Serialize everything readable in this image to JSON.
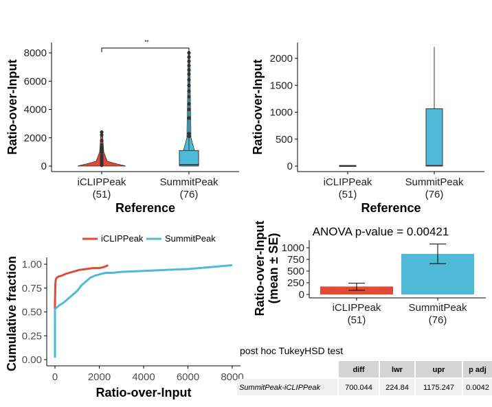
{
  "colors": {
    "iclip": "#E24A33",
    "summit": "#4EBAD7"
  },
  "chart_data": [
    {
      "type": "violin",
      "panel": "top-left",
      "categories": [
        "iCLIPPeak\n(51)",
        "SummitPeak\n(76)"
      ],
      "category_names": [
        "iCLIPPeak",
        "SummitPeak"
      ],
      "category_counts": [
        "(51)",
        "(76)"
      ],
      "xlabel": "Reference",
      "ylabel": "Ratio-over-Input",
      "ylim": [
        0,
        8500
      ],
      "yticks": [
        0,
        2000,
        4000,
        6000,
        8000
      ],
      "significance_label": "**",
      "box": {
        "SummitPeak": {
          "q1": 80,
          "median": 100,
          "q3": 1100,
          "whisker_high": 8000
        }
      },
      "outliers": {
        "iCLIPPeak": [
          2400,
          2200,
          1800,
          1500,
          1300,
          1200,
          1100,
          1000,
          800,
          700,
          600,
          500,
          400,
          300,
          200,
          100,
          60
        ],
        "SummitPeak": [
          2100,
          2300,
          3400,
          4000,
          4400,
          4900,
          5300,
          5700,
          6100,
          6500,
          6800,
          7100,
          7400,
          7700,
          8000
        ]
      }
    },
    {
      "type": "box",
      "panel": "top-right",
      "categories": [
        "iCLIPPeak\n(51)",
        "SummitPeak\n(76)"
      ],
      "category_names": [
        "iCLIPPeak",
        "SummitPeak"
      ],
      "category_counts": [
        "(51)",
        "(76)"
      ],
      "xlabel": "Reference",
      "ylabel": "Ratio-over-Input",
      "ylim": [
        -50,
        2300
      ],
      "yticks": [
        0,
        500,
        1000,
        1500,
        2000
      ],
      "boxes": [
        {
          "name": "iCLIPPeak",
          "q1": 0,
          "median": 5,
          "q3": 12,
          "whisker_low": 0,
          "whisker_high": 12
        },
        {
          "name": "SummitPeak",
          "q1": 0,
          "median": 10,
          "q3": 1065,
          "whisker_low": 0,
          "whisker_high": 2210
        }
      ]
    },
    {
      "type": "line",
      "panel": "bottom-left",
      "xlabel": "Ratio-over-Input",
      "ylabel": "Cumulative fraction",
      "xlim": [
        -200,
        8000
      ],
      "ylim": [
        0,
        1.0
      ],
      "xticks": [
        0,
        2000,
        4000,
        6000,
        8000
      ],
      "yticks": [
        0,
        0.25,
        0.5,
        0.75,
        1.0
      ],
      "ytick_labels": [
        "0.00",
        "0.25",
        "0.50",
        "0.75",
        "1.00"
      ],
      "legend": "top",
      "series": [
        {
          "name": "iCLIPPeak",
          "x": [
            0,
            0,
            20,
            40,
            80,
            150,
            300,
            500,
            800,
            1100,
            1400,
            1700,
            2000,
            2200,
            2400
          ],
          "y": [
            0.5,
            0.6,
            0.8,
            0.84,
            0.86,
            0.87,
            0.88,
            0.9,
            0.92,
            0.94,
            0.95,
            0.96,
            0.96,
            0.97,
            0.99
          ]
        },
        {
          "name": "SummitPeak",
          "x": [
            0,
            0,
            100,
            200,
            400,
            700,
            1000,
            1200,
            1400,
            1600,
            1800,
            2100,
            2300,
            2600,
            3000,
            4000,
            5000,
            6000,
            7000,
            8000
          ],
          "y": [
            0.02,
            0.53,
            0.55,
            0.57,
            0.6,
            0.66,
            0.72,
            0.78,
            0.82,
            0.86,
            0.88,
            0.9,
            0.91,
            0.91,
            0.92,
            0.93,
            0.94,
            0.95,
            0.97,
            0.99
          ]
        }
      ]
    },
    {
      "type": "bar",
      "panel": "bottom-right",
      "title": "ANOVA p-value = 0.00421",
      "categories": [
        "iCLIPPeak\n(51)",
        "SummitPeak\n(76)"
      ],
      "category_names": [
        "iCLIPPeak",
        "SummitPeak"
      ],
      "category_counts": [
        "(51)",
        "(76)"
      ],
      "ylabel": "Ratio-over-Input\n(mean ± SE)",
      "ylabel_lines": [
        "Ratio-over-Input",
        "(mean ± SE)"
      ],
      "ylim": [
        -60,
        1150
      ],
      "yticks": [
        0,
        250,
        500,
        750,
        1000
      ],
      "values": [
        170,
        870
      ],
      "errors": [
        {
          "low": 90,
          "high": 240
        },
        {
          "low": 660,
          "high": 1080
        }
      ]
    }
  ],
  "tukey": {
    "title": "post hoc TukeyHSD test",
    "headers": [
      "diff",
      "lwr",
      "upr",
      "p adj"
    ],
    "rows": [
      {
        "label": "SummitPeak-iCLIPPeak",
        "values": [
          "700.044",
          "224.84",
          "1175.247",
          "0.0042"
        ]
      }
    ]
  }
}
